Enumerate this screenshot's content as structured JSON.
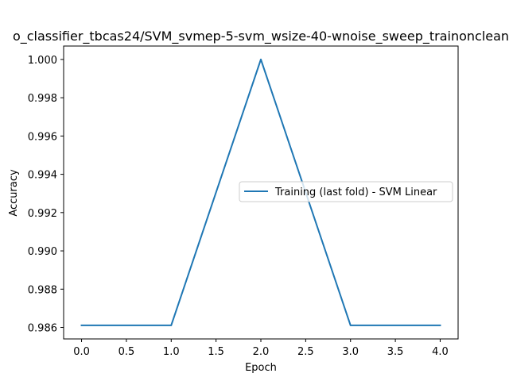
{
  "chart_data": {
    "type": "line",
    "title": "o_classifier_tbcas24/SVM_svmep-5-svm_wsize-40-wnoise_sweep_trainonclean",
    "xlabel": "Epoch",
    "ylabel": "Accuracy",
    "xlim": [
      -0.2,
      4.2
    ],
    "ylim": [
      0.9854,
      1.0007
    ],
    "x_ticks": [
      0.0,
      0.5,
      1.0,
      1.5,
      2.0,
      2.5,
      3.0,
      3.5,
      4.0
    ],
    "x_tick_labels": [
      "0.0",
      "0.5",
      "1.0",
      "1.5",
      "2.0",
      "2.5",
      "3.0",
      "3.5",
      "4.0"
    ],
    "y_ticks": [
      0.986,
      0.988,
      0.99,
      0.992,
      0.994,
      0.996,
      0.998,
      1.0
    ],
    "y_tick_labels": [
      "0.986",
      "0.988",
      "0.990",
      "0.992",
      "0.994",
      "0.996",
      "0.998",
      "1.000"
    ],
    "grid": false,
    "legend_position": "center-right",
    "series": [
      {
        "name": "Training (last fold) - SVM Linear",
        "color": "#1f77b4",
        "x": [
          0,
          1,
          2,
          3,
          4
        ],
        "values": [
          0.98611,
          0.98611,
          1.0,
          0.98611,
          0.98611
        ]
      }
    ]
  }
}
